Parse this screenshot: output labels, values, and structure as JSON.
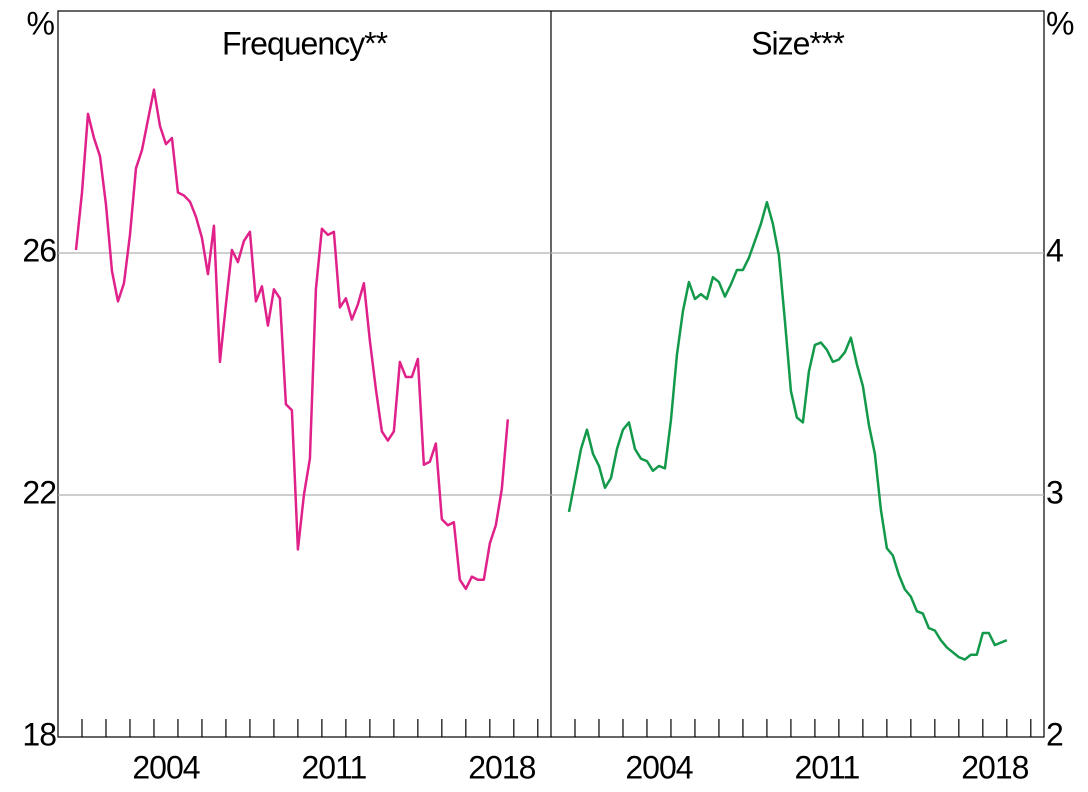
{
  "chart_data": [
    {
      "type": "line",
      "title": "Frequency**",
      "y_unit": "%",
      "color": "#e0218a",
      "x": [
        2000.75,
        2001,
        2001.25,
        2001.5,
        2001.75,
        2002,
        2002.25,
        2002.5,
        2002.75,
        2003,
        2003.25,
        2003.5,
        2003.75,
        2004,
        2004.25,
        2004.5,
        2004.75,
        2005,
        2005.25,
        2005.5,
        2005.75,
        2006,
        2006.25,
        2006.5,
        2006.75,
        2007,
        2007.25,
        2007.5,
        2007.75,
        2008,
        2008.25,
        2008.5,
        2008.75,
        2009,
        2009.25,
        2009.5,
        2009.75,
        2010,
        2010.25,
        2010.5,
        2010.75,
        2011,
        2011.25,
        2011.5,
        2011.75,
        2012,
        2012.25,
        2012.5,
        2012.75,
        2013,
        2013.25,
        2013.5,
        2013.75,
        2014,
        2014.25,
        2014.5,
        2014.75,
        2015,
        2015.25,
        2015.5,
        2015.75,
        2016,
        2016.25,
        2016.5,
        2016.75,
        2017,
        2017.25,
        2017.5,
        2017.75,
        2018,
        2018.25,
        2018.5,
        2018.75
      ],
      "values": [
        26.05,
        27.0,
        28.3,
        27.9,
        27.6,
        26.8,
        25.7,
        25.2,
        25.5,
        26.3,
        27.4,
        27.7,
        28.2,
        28.7,
        28.1,
        27.8,
        27.9,
        27.0,
        26.95,
        26.85,
        26.6,
        26.25,
        25.65,
        26.45,
        24.2,
        25.15,
        26.05,
        25.85,
        26.2,
        26.35,
        25.2,
        25.45,
        24.8,
        25.4,
        25.25,
        23.5,
        23.4,
        21.1,
        22.0,
        22.6,
        25.4,
        26.4,
        26.3,
        26.35,
        25.1,
        25.25,
        24.9,
        25.15,
        25.5,
        24.55,
        23.75,
        23.05,
        22.9,
        23.05,
        24.2,
        23.95,
        23.95,
        24.25,
        22.5,
        22.55,
        22.85,
        21.6,
        21.5,
        21.55,
        20.6,
        20.45,
        20.65,
        20.6,
        20.6,
        21.2,
        21.5,
        22.1,
        23.25
      ],
      "xlim": [
        2000,
        2020.55
      ],
      "xticks": [
        {
          "value": 2004.5,
          "label": "2004"
        },
        {
          "value": 2011.5,
          "label": "2011"
        },
        {
          "value": 2018.5,
          "label": "2018"
        }
      ],
      "xminor": [
        2001,
        2002,
        2003,
        2004,
        2005,
        2006,
        2007,
        2008,
        2009,
        2010,
        2011,
        2012,
        2013,
        2014,
        2015,
        2016,
        2017,
        2018,
        2019,
        2020
      ],
      "ylim": [
        18,
        30
      ],
      "yticks": [
        18,
        22,
        26
      ],
      "grid": true,
      "axis_side": "left"
    },
    {
      "type": "line",
      "title": "Size***",
      "y_unit": "%",
      "color": "#12994a",
      "x": [
        2000.75,
        2001,
        2001.25,
        2001.5,
        2001.75,
        2002,
        2002.25,
        2002.5,
        2002.75,
        2003,
        2003.25,
        2003.5,
        2003.75,
        2004,
        2004.25,
        2004.5,
        2004.75,
        2005,
        2005.25,
        2005.5,
        2005.75,
        2006,
        2006.25,
        2006.5,
        2006.75,
        2007,
        2007.25,
        2007.5,
        2007.75,
        2008,
        2008.25,
        2008.5,
        2008.75,
        2009,
        2009.25,
        2009.5,
        2009.75,
        2010,
        2010.25,
        2010.5,
        2010.75,
        2011,
        2011.25,
        2011.5,
        2011.75,
        2012,
        2012.25,
        2012.5,
        2012.75,
        2013,
        2013.25,
        2013.5,
        2013.75,
        2014,
        2014.25,
        2014.5,
        2014.75,
        2015,
        2015.25,
        2015.5,
        2015.75,
        2016,
        2016.25,
        2016.5,
        2016.75,
        2017,
        2017.25,
        2017.5,
        2017.75,
        2018,
        2018.25,
        2018.5,
        2018.75,
        2019
      ],
      "values": [
        2.93,
        3.06,
        3.19,
        3.27,
        3.17,
        3.12,
        3.03,
        3.07,
        3.19,
        3.27,
        3.3,
        3.19,
        3.15,
        3.14,
        3.1,
        3.12,
        3.11,
        3.31,
        3.58,
        3.76,
        3.88,
        3.81,
        3.83,
        3.81,
        3.9,
        3.88,
        3.82,
        3.87,
        3.93,
        3.93,
        3.98,
        4.05,
        4.12,
        4.21,
        4.12,
        3.99,
        3.72,
        3.43,
        3.32,
        3.3,
        3.51,
        3.62,
        3.63,
        3.6,
        3.55,
        3.56,
        3.59,
        3.65,
        3.54,
        3.45,
        3.29,
        3.17,
        2.94,
        2.78,
        2.75,
        2.67,
        2.61,
        2.58,
        2.52,
        2.51,
        2.45,
        2.44,
        2.4,
        2.37,
        2.35,
        2.33,
        2.32,
        2.34,
        2.34,
        2.43,
        2.43,
        2.38,
        2.39,
        2.4
      ],
      "xlim": [
        2000,
        2020.55
      ],
      "xticks": [
        {
          "value": 2004.5,
          "label": "2004"
        },
        {
          "value": 2011.5,
          "label": "2011"
        },
        {
          "value": 2018.5,
          "label": "2018"
        }
      ],
      "xminor": [
        2001,
        2002,
        2003,
        2004,
        2005,
        2006,
        2007,
        2008,
        2009,
        2010,
        2011,
        2012,
        2013,
        2014,
        2015,
        2016,
        2017,
        2018,
        2019,
        2020
      ],
      "ylim": [
        2,
        5
      ],
      "yticks": [
        2,
        3,
        4
      ],
      "grid": true,
      "axis_side": "right"
    }
  ]
}
